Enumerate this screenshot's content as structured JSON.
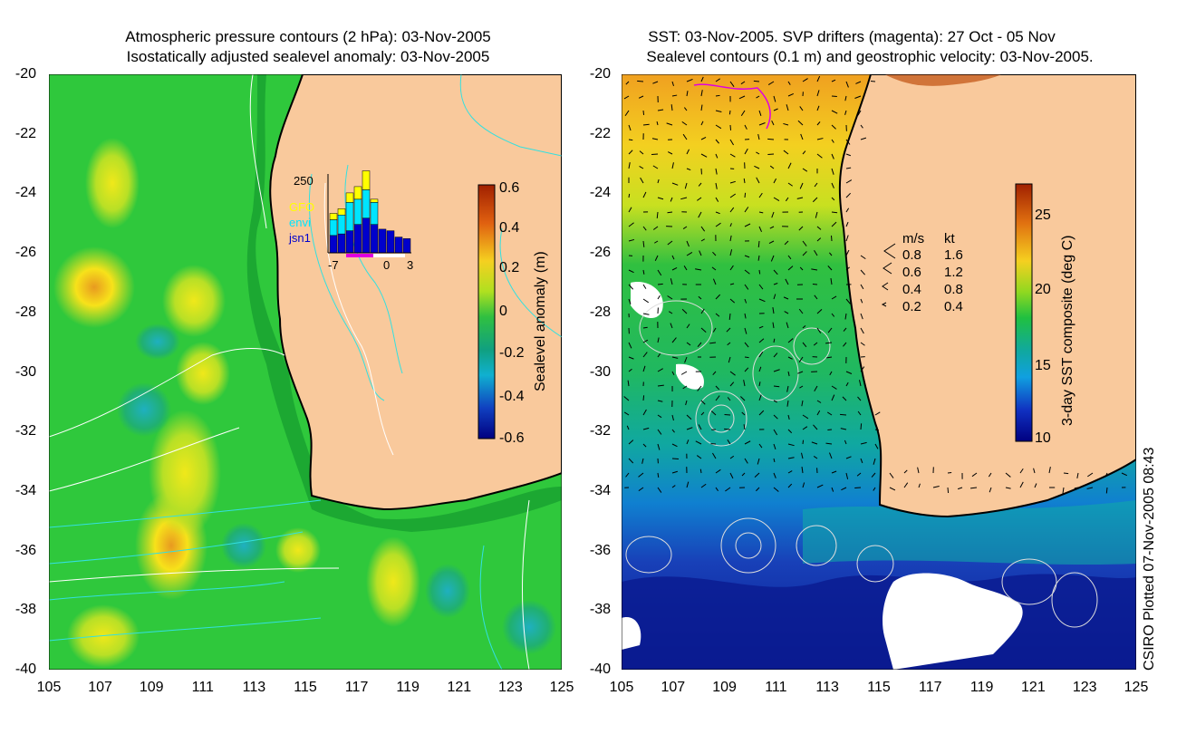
{
  "left_panel": {
    "title_line1": "Atmospheric pressure contours (2 hPa): 03-Nov-2005",
    "title_line2": "Isostatically adjusted sealevel anomaly: 03-Nov-2005",
    "colorbar": {
      "label": "Sealevel anomaly (m)",
      "ticks": [
        "0.6",
        "0.4",
        "0.2",
        "0",
        "-0.2",
        "-0.4",
        "-0.6"
      ]
    },
    "histogram": {
      "ymax_label": "250",
      "legend": [
        "GFO",
        "envi",
        "jsn1"
      ],
      "legend_colors": [
        "#ffff00",
        "#00e5ff",
        "#0000cc"
      ],
      "xticks": [
        "-7",
        "0",
        "3"
      ],
      "values": [
        {
          "day": -7,
          "jsn1": 55,
          "envi": 50,
          "gfo": 20
        },
        {
          "day": -6,
          "jsn1": 60,
          "envi": 60,
          "gfo": 20
        },
        {
          "day": -5,
          "jsn1": 70,
          "envi": 90,
          "gfo": 30
        },
        {
          "day": -4,
          "jsn1": 90,
          "envi": 80,
          "gfo": 40
        },
        {
          "day": -3,
          "jsn1": 110,
          "envi": 90,
          "gfo": 60
        },
        {
          "day": -2,
          "jsn1": 90,
          "envi": 70,
          "gfo": 10
        },
        {
          "day": -1,
          "jsn1": 75,
          "envi": 0,
          "gfo": 0
        },
        {
          "day": 0,
          "jsn1": 70,
          "envi": 0,
          "gfo": 0
        },
        {
          "day": 1,
          "jsn1": 50,
          "envi": 0,
          "gfo": 0
        },
        {
          "day": 2,
          "jsn1": 45,
          "envi": 0,
          "gfo": 0
        }
      ],
      "ymax": 250
    }
  },
  "right_panel": {
    "title_line1": "SST: 03-Nov-2005. SVP drifters (magenta): 27 Oct - 05 Nov",
    "title_line2": "Sealevel contours (0.1 m) and geostrophic velocity: 03-Nov-2005.",
    "colorbar": {
      "label": "3-day SST composite (deg C)",
      "ticks": [
        "25",
        "20",
        "15",
        "10"
      ]
    },
    "velocity_legend": {
      "header_ms": "m/s",
      "header_kt": "kt",
      "rows": [
        {
          "ms": "0.8",
          "kt": "1.6"
        },
        {
          "ms": "0.6",
          "kt": "1.2"
        },
        {
          "ms": "0.4",
          "kt": "0.8"
        },
        {
          "ms": "0.2",
          "kt": "0.4"
        }
      ]
    }
  },
  "axes": {
    "y_ticks": [
      "-20",
      "-22",
      "-24",
      "-26",
      "-28",
      "-30",
      "-32",
      "-34",
      "-36",
      "-38",
      "-40"
    ],
    "x_ticks": [
      "105",
      "107",
      "109",
      "111",
      "113",
      "115",
      "117",
      "119",
      "121",
      "123",
      "125"
    ],
    "lat_range": [
      -40,
      -20
    ],
    "lon_range": [
      105,
      125
    ]
  },
  "credit": "CSIRO Plotted 07-Nov-2005 08:43",
  "colors": {
    "land": "#f9c99c",
    "ocean_green": "#22c83a",
    "coast": "#000000",
    "contour_cyan": "#33e0e0",
    "contour_white": "#ffffff"
  }
}
